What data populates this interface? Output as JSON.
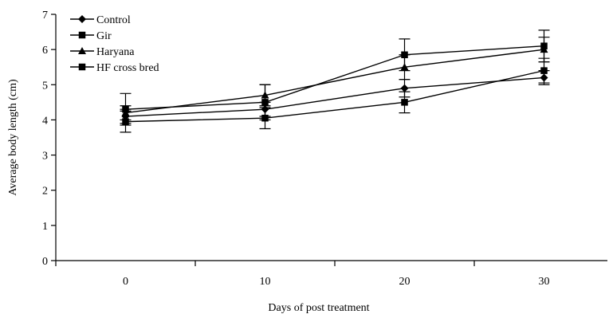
{
  "chart_data": {
    "type": "line",
    "title": "",
    "xlabel": "Days of post treatment",
    "ylabel": "Average body length (cm)",
    "x": [
      0,
      10,
      20,
      30
    ],
    "x_tick_labels": [
      "0",
      "10",
      "20",
      "30"
    ],
    "y_tick_labels": [
      "0",
      "1",
      "2",
      "3",
      "4",
      "5",
      "6",
      "7"
    ],
    "xlim": [
      -5,
      35
    ],
    "ylim": [
      0,
      7
    ],
    "grid": false,
    "legend_position": "top-left",
    "series": [
      {
        "name": "Control",
        "marker": "diamond",
        "values": [
          4.1,
          4.3,
          4.9,
          5.2
        ],
        "errors": [
          0.2,
          0.2,
          0.25,
          0.2
        ]
      },
      {
        "name": "Gir",
        "marker": "square",
        "values": [
          3.95,
          4.05,
          4.5,
          5.4
        ],
        "errors": [
          0.3,
          0.3,
          0.3,
          0.35
        ]
      },
      {
        "name": "Haryana",
        "marker": "triangle",
        "values": [
          4.2,
          4.7,
          5.5,
          6.0
        ],
        "errors": [
          0.2,
          0.3,
          0.35,
          0.35
        ]
      },
      {
        "name": "HF cross bred",
        "marker": "square",
        "values": [
          4.3,
          4.5,
          5.85,
          6.1
        ],
        "errors": [
          0.45,
          0.5,
          0.45,
          0.45
        ]
      }
    ]
  }
}
